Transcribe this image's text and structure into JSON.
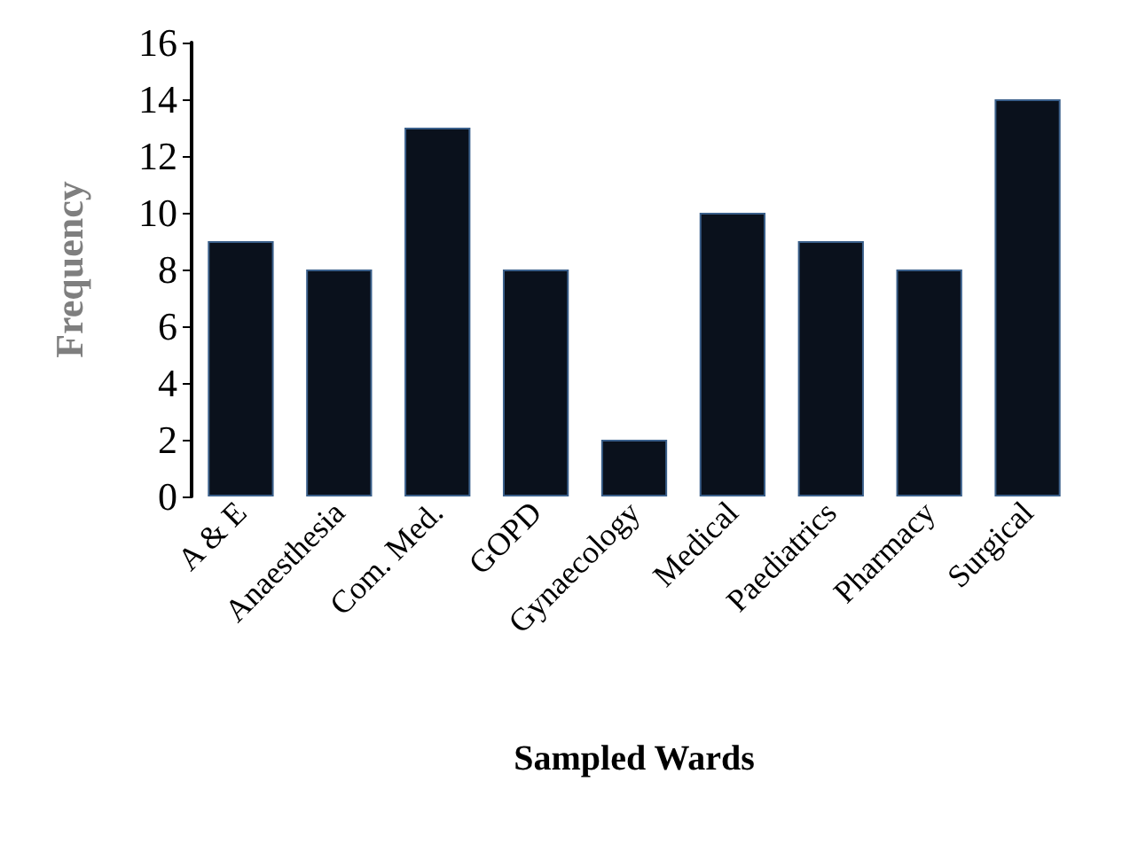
{
  "chart_data": {
    "type": "bar",
    "xlabel": "Sampled Wards",
    "ylabel": "Frequency",
    "categories": [
      "A & E",
      "Anaesthesia",
      "Com. Med.",
      "GOPD",
      "Gynaecology",
      "Medical",
      "Paediatrics",
      "Pharmacy",
      "Surgical"
    ],
    "values": [
      9,
      8,
      13,
      8,
      2,
      10,
      9,
      8,
      14
    ],
    "color": "#0a111c",
    "ylim": [
      0,
      16
    ],
    "yticks": [
      0,
      2,
      4,
      6,
      8,
      10,
      12,
      14,
      16
    ],
    "grid": false
  }
}
